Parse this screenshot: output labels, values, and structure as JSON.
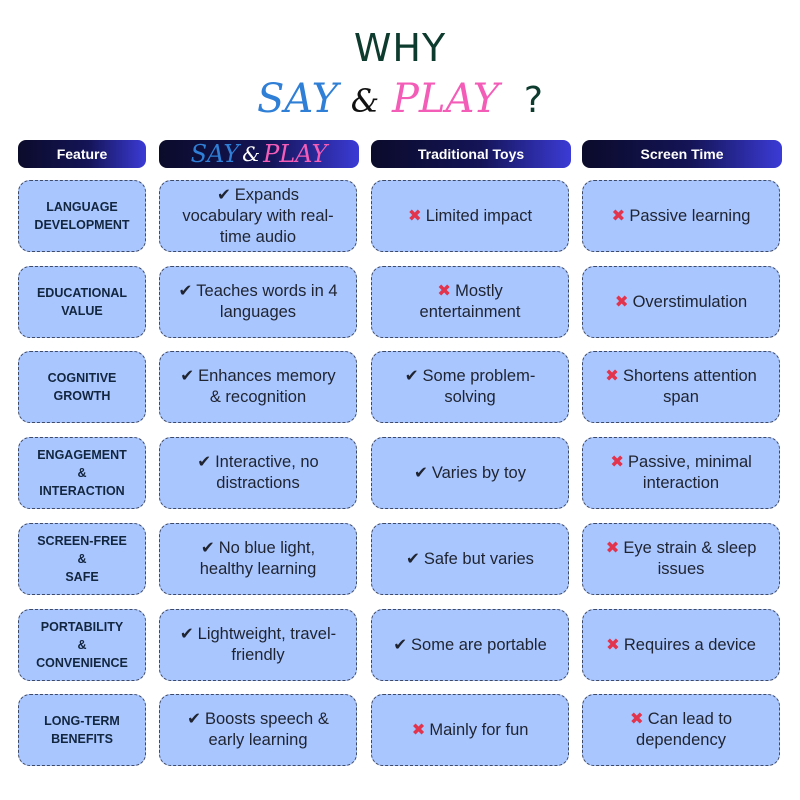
{
  "title": {
    "line1": "WHY",
    "say": "SAY",
    "amp": "&",
    "play": "PLAY",
    "qmark": "?"
  },
  "headers": {
    "feature": "Feature",
    "say": "SAY",
    "amp": "&",
    "play": "PLAY",
    "toys": "Traditional Toys",
    "screen": "Screen Time"
  },
  "colors": {
    "accent_blue": "#2f7fd6",
    "accent_pink": "#f35db8",
    "cell_bg": "#a9c6ff",
    "cross_red": "#e2344c",
    "title_green": "#0d3b2e"
  },
  "rows": [
    {
      "feature_lines": [
        "LANGUAGE",
        "DEVELOPMENT"
      ],
      "say": {
        "mark": "check",
        "lines": [
          "Expands",
          "vocabulary with real-",
          "time audio"
        ]
      },
      "toys": {
        "mark": "cross",
        "lines": [
          "Limited impact"
        ]
      },
      "screen": {
        "mark": "cross",
        "lines": [
          "Passive learning"
        ]
      }
    },
    {
      "feature_lines": [
        "EDUCATIONAL",
        "VALUE"
      ],
      "say": {
        "mark": "check",
        "lines": [
          "Teaches words in 4",
          "languages"
        ]
      },
      "toys": {
        "mark": "cross",
        "lines": [
          "Mostly",
          "entertainment"
        ]
      },
      "screen": {
        "mark": "cross",
        "lines": [
          "Overstimulation"
        ]
      }
    },
    {
      "feature_lines": [
        "COGNITIVE",
        "GROWTH"
      ],
      "say": {
        "mark": "check",
        "lines": [
          "Enhances memory",
          "& recognition"
        ]
      },
      "toys": {
        "mark": "check",
        "lines": [
          "Some problem-",
          "solving"
        ]
      },
      "screen": {
        "mark": "cross",
        "lines": [
          "Shortens attention",
          "span"
        ]
      }
    },
    {
      "feature_lines": [
        "ENGAGEMENT",
        "&",
        "INTERACTION"
      ],
      "say": {
        "mark": "check",
        "lines": [
          "Interactive, no",
          "distractions"
        ]
      },
      "toys": {
        "mark": "check",
        "lines": [
          "Varies by toy"
        ]
      },
      "screen": {
        "mark": "cross",
        "lines": [
          "Passive, minimal",
          "interaction"
        ]
      }
    },
    {
      "feature_lines": [
        "SCREEN-FREE",
        "&",
        "SAFE"
      ],
      "say": {
        "mark": "check",
        "lines": [
          "No blue light,",
          "healthy learning"
        ]
      },
      "toys": {
        "mark": "check",
        "lines": [
          "Safe but varies"
        ]
      },
      "screen": {
        "mark": "cross",
        "lines": [
          "Eye strain & sleep",
          "issues"
        ]
      }
    },
    {
      "feature_lines": [
        "PORTABILITY",
        "&",
        "CONVENIENCE"
      ],
      "say": {
        "mark": "check",
        "lines": [
          "Lightweight, travel-",
          "friendly"
        ]
      },
      "toys": {
        "mark": "check",
        "lines": [
          "Some are portable"
        ]
      },
      "screen": {
        "mark": "cross",
        "lines": [
          "Requires a device"
        ]
      }
    },
    {
      "feature_lines": [
        "LONG-TERM",
        "BENEFITS"
      ],
      "say": {
        "mark": "check",
        "lines": [
          "Boosts speech &",
          "early learning"
        ]
      },
      "toys": {
        "mark": "cross",
        "lines": [
          "Mainly for fun"
        ]
      },
      "screen": {
        "mark": "cross",
        "lines": [
          "Can lead to",
          "dependency"
        ]
      }
    }
  ]
}
